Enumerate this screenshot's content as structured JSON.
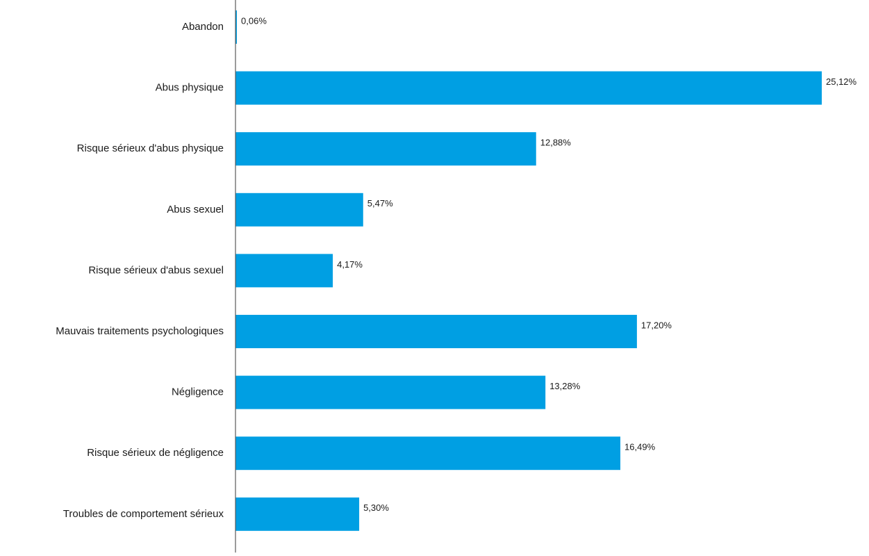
{
  "chart_data": {
    "type": "bar",
    "orientation": "horizontal",
    "title": "",
    "xlabel": "",
    "ylabel": "",
    "categories": [
      "Abandon",
      "Abus physique",
      "Risque sérieux d'abus physique",
      "Abus sexuel",
      "Risque sérieux d'abus sexuel",
      "Mauvais traitements psychologiques",
      "Négligence",
      "Risque sérieux de négligence",
      "Troubles de comportement sérieux"
    ],
    "values": [
      0.06,
      25.12,
      12.88,
      5.47,
      4.17,
      17.2,
      13.28,
      16.49,
      5.3
    ],
    "data_labels": [
      "0,06%",
      "25,12%",
      "12,88%",
      "5,47%",
      "4,17%",
      "17,20%",
      "13,28%",
      "16,49%",
      "5,30%"
    ],
    "xlim": [
      0,
      25.12
    ],
    "grid": false,
    "legend": "none",
    "bar_color": "#009fe3",
    "axis_color": "#595959"
  }
}
